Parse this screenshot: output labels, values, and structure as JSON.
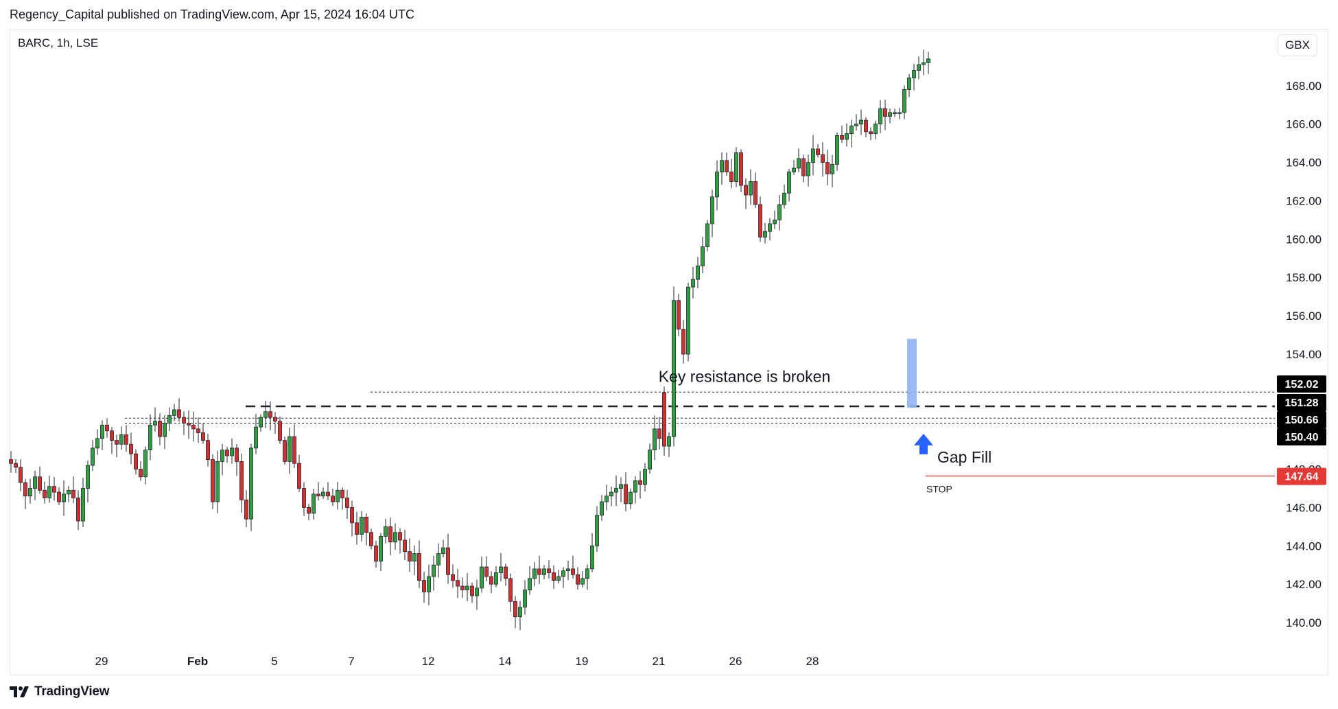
{
  "header": {
    "publisher_line": "Regency_Capital published on TradingView.com, Apr 15, 2024 16:04 UTC"
  },
  "chart_header": {
    "symbol_line": "BARC, 1h, LSE",
    "currency": "GBX"
  },
  "branding": {
    "name": "TradingView"
  },
  "colors": {
    "up": "#22ab94",
    "up_body": "#2e9e3f",
    "down": "#d32f2f",
    "stop": "#e53935",
    "gap_fill_box": "#8fb2f5",
    "arrow": "#2962ff",
    "tag_bg": "#000000"
  },
  "chart_data": {
    "type": "candlestick",
    "title": "",
    "xlabel": "",
    "ylabel": "",
    "ylim": [
      139.0,
      170.5
    ],
    "y_ticks": [
      "140.00",
      "142.00",
      "144.00",
      "146.00",
      "148.00",
      "154.00",
      "156.00",
      "158.00",
      "160.00",
      "162.00",
      "164.00",
      "166.00",
      "168.00"
    ],
    "x_ticks": [
      {
        "label": "29",
        "bar": 20
      },
      {
        "label": "Feb",
        "bar": 40
      },
      {
        "label": "5",
        "bar": 56
      },
      {
        "label": "7",
        "bar": 72
      },
      {
        "label": "12",
        "bar": 88
      },
      {
        "label": "14",
        "bar": 104
      },
      {
        "label": "19",
        "bar": 120
      },
      {
        "label": "21",
        "bar": 136
      },
      {
        "label": "26",
        "bar": 152
      },
      {
        "label": "28",
        "bar": 168
      }
    ],
    "grid": false,
    "closes": [
      148.3,
      148.1,
      147.3,
      146.6,
      147.0,
      147.6,
      146.9,
      146.5,
      147.1,
      146.8,
      146.3,
      146.7,
      146.9,
      146.5,
      145.3,
      147.0,
      148.2,
      149.1,
      149.6,
      150.3,
      150.0,
      149.5,
      149.3,
      149.8,
      149.3,
      148.8,
      148.0,
      147.6,
      149.0,
      150.3,
      150.5,
      149.7,
      150.4,
      150.8,
      151.1,
      150.7,
      150.4,
      150.3,
      150.1,
      149.9,
      149.5,
      148.5,
      146.3,
      148.4,
      149.0,
      148.7,
      149.1,
      148.4,
      146.4,
      145.4,
      149.1,
      150.2,
      150.7,
      151.0,
      150.7,
      150.5,
      149.5,
      148.4,
      149.7,
      148.3,
      147.0,
      146.0,
      145.7,
      146.7,
      146.6,
      146.8,
      146.6,
      146.3,
      146.9,
      146.5,
      146.0,
      145.2,
      144.6,
      145.5,
      144.7,
      144.0,
      143.2,
      144.5,
      145.0,
      144.2,
      144.7,
      144.3,
      143.7,
      143.2,
      143.6,
      142.2,
      141.6,
      142.4,
      143.0,
      143.6,
      143.9,
      142.5,
      142.2,
      141.9,
      141.7,
      141.9,
      141.4,
      141.8,
      142.9,
      142.4,
      142.0,
      142.6,
      142.9,
      142.3,
      141.1,
      140.3,
      140.8,
      141.7,
      142.3,
      142.8,
      142.5,
      142.8,
      142.6,
      142.2,
      142.4,
      142.7,
      142.8,
      142.5,
      142.0,
      142.3,
      142.8,
      144.0,
      145.6,
      146.3,
      146.6,
      146.8,
      147.0,
      147.2,
      146.2,
      146.8,
      147.4,
      147.2,
      148.0,
      149.0,
      150.1,
      149.6,
      149.2,
      149.7,
      156.8,
      155.3,
      154.0,
      157.5,
      157.9,
      158.6,
      159.6,
      160.8,
      162.2,
      163.5,
      164.1,
      163.5,
      163.0,
      164.5,
      162.8,
      162.3,
      163.0,
      161.8,
      160.1,
      160.4,
      160.8,
      161.0,
      161.8,
      162.4,
      163.5,
      163.7,
      164.2,
      163.3,
      164.0,
      164.7,
      164.4,
      164.0,
      163.4,
      163.9,
      165.4,
      165.2,
      165.5,
      165.9,
      166.0,
      166.2,
      165.6,
      165.5,
      166.0,
      166.8,
      166.4,
      166.6,
      166.6,
      166.6,
      167.8,
      168.4,
      168.8,
      169.1,
      169.2,
      169.4
    ],
    "price_lines": [
      {
        "label": "152.02",
        "value": 152.02,
        "style": "dotted"
      },
      {
        "label": "151.28",
        "value": 151.28,
        "style": "dashed"
      },
      {
        "label": "150.66",
        "value": 150.66,
        "style": "dotted"
      },
      {
        "label": "150.40",
        "value": 150.4,
        "style": "dotted"
      },
      {
        "label": "147.64",
        "value": 147.64,
        "style": "solid-red"
      }
    ],
    "annotations": {
      "resistance_text": "Key resistance is broken",
      "gap_fill_text": "Gap Fill",
      "stop_text": "STOP"
    },
    "gap_fill_box": {
      "from": 151.2,
      "to": 154.8
    }
  }
}
